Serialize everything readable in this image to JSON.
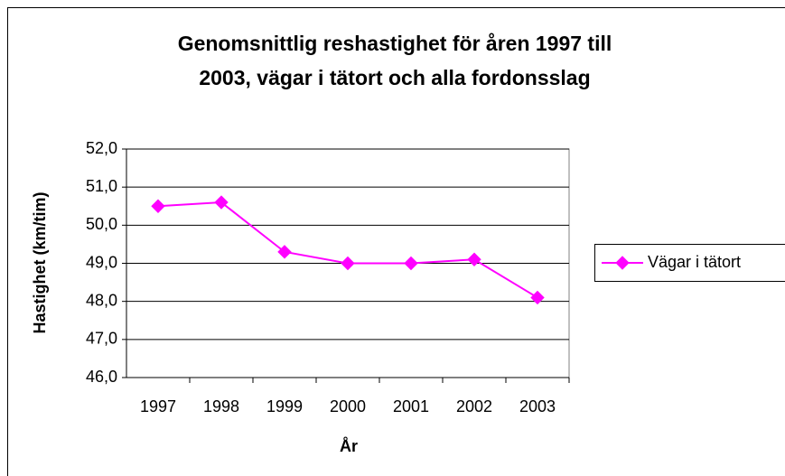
{
  "chart_data": {
    "type": "line",
    "title": [
      "Genomsnittlig reshastighet för åren 1997 till",
      "2003, vägar i tätort och alla fordonsslag"
    ],
    "x_label": "År",
    "y_label": "Hastighet (km/tim)",
    "categories": [
      "1997",
      "1998",
      "1999",
      "2000",
      "2001",
      "2002",
      "2003"
    ],
    "series": [
      {
        "name": "Vägar i tätort",
        "color": "#ff00ff",
        "values": [
          50.5,
          50.6,
          49.3,
          49.0,
          49.0,
          49.1,
          48.1
        ]
      }
    ],
    "ylim": [
      46,
      52
    ],
    "yticks": [
      {
        "value": 46,
        "label": "46,0"
      },
      {
        "value": 47,
        "label": "47,0"
      },
      {
        "value": 48,
        "label": "48,0"
      },
      {
        "value": 49,
        "label": "49,0"
      },
      {
        "value": 50,
        "label": "50,0"
      },
      {
        "value": 51,
        "label": "51,0"
      },
      {
        "value": 52,
        "label": "52,0"
      }
    ],
    "grid": true,
    "legend": "right"
  }
}
